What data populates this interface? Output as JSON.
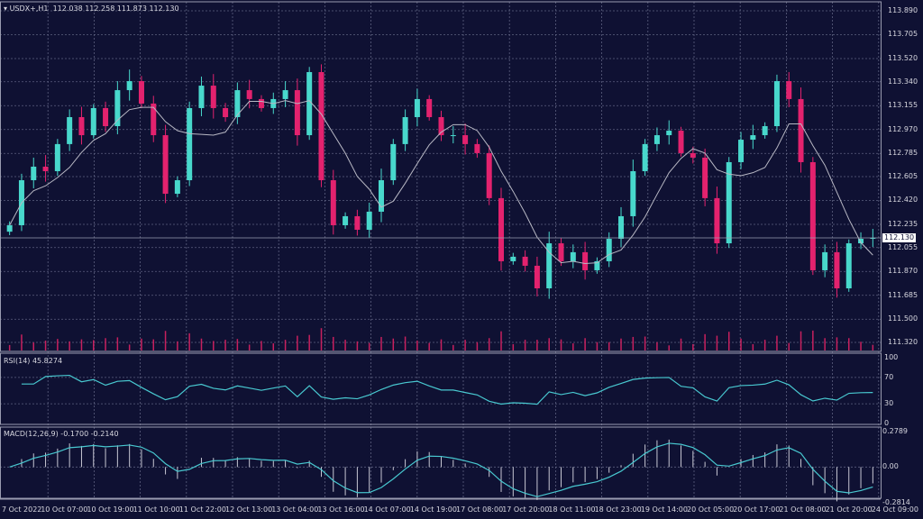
{
  "header": {
    "symbol": "USDX+,H1",
    "ohlc": "112.038 112.258 111.873 112.130"
  },
  "current_price": "112.130",
  "colors": {
    "background": "#0f1133",
    "bull": "#48d8cc",
    "bear": "#e3226e",
    "grid": "#5d6180",
    "ma": "#b8b8c4",
    "indicator": "#48c8d0",
    "volume": "#c8205e"
  },
  "chart_data": [
    {
      "type": "candlestick",
      "title": "USDX+,H1",
      "y_ticks": [
        "113.890",
        "113.705",
        "113.520",
        "113.340",
        "113.155",
        "112.970",
        "112.785",
        "112.605",
        "112.420",
        "112.235",
        "112.055",
        "111.870",
        "111.685",
        "111.500",
        "111.320"
      ],
      "ylim": [
        111.32,
        113.89
      ],
      "x_ticks": [
        "7 Oct 2022",
        "10 Oct 07:00",
        "10 Oct 19:00",
        "11 Oct 10:00",
        "11 Oct 22:00",
        "12 Oct 13:00",
        "13 Oct 04:00",
        "13 Oct 16:00",
        "14 Oct 07:00",
        "14 Oct 19:00",
        "17 Oct 08:00",
        "17 Oct 20:00",
        "18 Oct 11:00",
        "18 Oct 23:00",
        "19 Oct 14:00",
        "20 Oct 05:00",
        "20 Oct 17:00",
        "21 Oct 08:00",
        "21 Oct 20:00",
        "24 Oct 09:00"
      ],
      "grid": true,
      "close": [
        112.228,
        112.577,
        112.682,
        112.647,
        112.857,
        113.066,
        112.926,
        113.136,
        112.996,
        113.275,
        113.345,
        113.171,
        112.926,
        112.472,
        112.577,
        113.136,
        113.31,
        113.136,
        113.066,
        113.275,
        113.206,
        113.136,
        113.206,
        113.275,
        112.926,
        113.415,
        112.577,
        112.228,
        112.298,
        112.193,
        112.333,
        112.577,
        112.857,
        113.066,
        113.206,
        113.066,
        112.926,
        112.926,
        112.857,
        112.787,
        112.438,
        111.949,
        111.984,
        111.914,
        111.739,
        112.088,
        111.949,
        112.019,
        111.879,
        111.949,
        112.123,
        112.298,
        112.647,
        112.857,
        112.926,
        112.961,
        112.787,
        112.752,
        112.438,
        112.088,
        112.717,
        112.891,
        112.926,
        112.996,
        113.345,
        113.206,
        112.717,
        111.879,
        112.019,
        111.739,
        112.088,
        112.123,
        112.13
      ],
      "moving_average": "line",
      "volume": "histogram"
    },
    {
      "type": "line",
      "title": "RSI(14) 45.8274",
      "y_ticks": [
        "100",
        "70",
        "30",
        "0"
      ],
      "ylim": [
        0,
        100
      ],
      "levels": [
        70,
        30
      ]
    },
    {
      "type": "line+histogram",
      "title": "MACD(12,26,9) -0.1700 -0.2140",
      "y_ticks": [
        "0.2789",
        "0.00",
        "-0.2814"
      ],
      "ylim": [
        -0.2814,
        0.2789
      ]
    }
  ]
}
